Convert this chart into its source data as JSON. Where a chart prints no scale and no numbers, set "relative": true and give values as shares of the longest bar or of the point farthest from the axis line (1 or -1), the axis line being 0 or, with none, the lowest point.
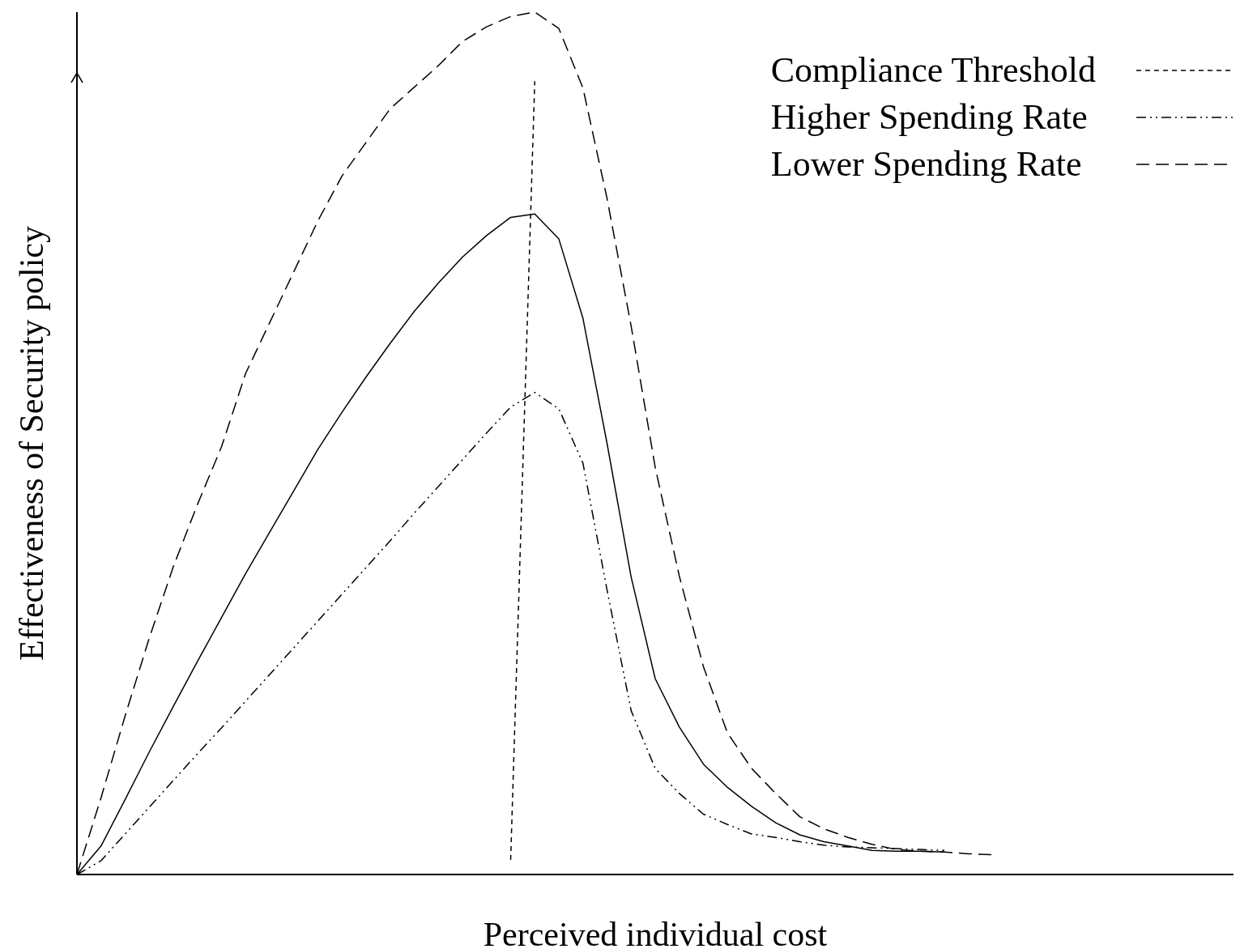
{
  "chart_data": {
    "type": "line",
    "relative": true,
    "xlabel": "Perceived individual cost",
    "ylabel": "Effectiveness of Security policy",
    "legend": "top right",
    "marker": "none",
    "categories": [
      null,
      null,
      null,
      null,
      null,
      null,
      null,
      null,
      null,
      null,
      null,
      null,
      null,
      null,
      null,
      null,
      null,
      null,
      null,
      null,
      null,
      null,
      null,
      null,
      null,
      null,
      null,
      null,
      null,
      null,
      null,
      null,
      null,
      null,
      null,
      null,
      null,
      null,
      null,
      null,
      null,
      null,
      null,
      null,
      null,
      null,
      null,
      null,
      null
    ],
    "series": [
      {
        "color": "#000000",
        "line_style": "solid",
        "values": [
          0,
          0.033,
          0.087,
          0.142,
          0.195,
          0.247,
          0.298,
          0.349,
          0.397,
          0.445,
          0.493,
          0.536,
          0.577,
          0.616,
          0.653,
          0.686,
          0.716,
          0.741,
          0.762,
          0.766,
          0.737,
          0.645,
          0.5,
          0.345,
          0.227,
          0.171,
          0.128,
          0.101,
          0.079,
          0.06,
          0.046,
          0.038,
          0.033,
          0.028,
          0.027,
          0.027,
          0.026,
          null,
          null,
          null,
          null,
          null,
          null,
          null,
          null,
          null,
          null,
          null,
          null
        ]
      },
      {
        "name": "Compliance Threshold",
        "color": "#000000",
        "line_style": "dotted",
        "values": [
          null,
          null,
          null,
          null,
          null,
          null,
          null,
          null,
          null,
          null,
          null,
          null,
          null,
          null,
          null,
          null,
          null,
          null,
          0.017,
          0.92,
          null,
          null,
          null,
          null,
          null,
          null,
          null,
          null,
          null,
          null,
          null,
          null,
          null,
          null,
          null,
          null,
          null,
          null,
          null,
          null,
          null,
          null,
          null,
          null,
          null,
          null,
          null,
          null,
          null
        ]
      },
      {
        "name": "Higher Spending Rate",
        "color": "#000000",
        "line_style": "dashdot",
        "values": [
          0,
          0.016,
          0.047,
          0.078,
          0.109,
          0.14,
          0.17,
          0.201,
          0.232,
          0.263,
          0.294,
          0.325,
          0.356,
          0.387,
          0.419,
          0.45,
          0.481,
          0.512,
          0.542,
          0.559,
          0.54,
          0.477,
          0.33,
          0.19,
          0.123,
          0.094,
          0.07,
          0.058,
          0.047,
          0.043,
          0.038,
          0.034,
          0.032,
          0.031,
          0.03,
          0.029,
          0.028,
          null,
          null,
          null,
          null,
          null,
          null,
          null,
          null,
          null,
          null,
          null,
          null
        ]
      },
      {
        "name": "Lower Spending Rate",
        "color": "#000000",
        "line_style": "dashed",
        "values": [
          0,
          0.089,
          0.184,
          0.274,
          0.357,
          0.429,
          0.496,
          0.581,
          0.64,
          0.699,
          0.758,
          0.81,
          0.849,
          0.888,
          0.913,
          0.938,
          0.966,
          0.983,
          0.995,
          1,
          0.981,
          0.912,
          0.784,
          0.636,
          0.472,
          0.346,
          0.241,
          0.164,
          0.123,
          0.094,
          0.067,
          0.053,
          0.043,
          0.035,
          0.029,
          0.027,
          0.026,
          0.024,
          0.023,
          null,
          null,
          null,
          null,
          null,
          null,
          null,
          null,
          null,
          null
        ]
      }
    ]
  }
}
